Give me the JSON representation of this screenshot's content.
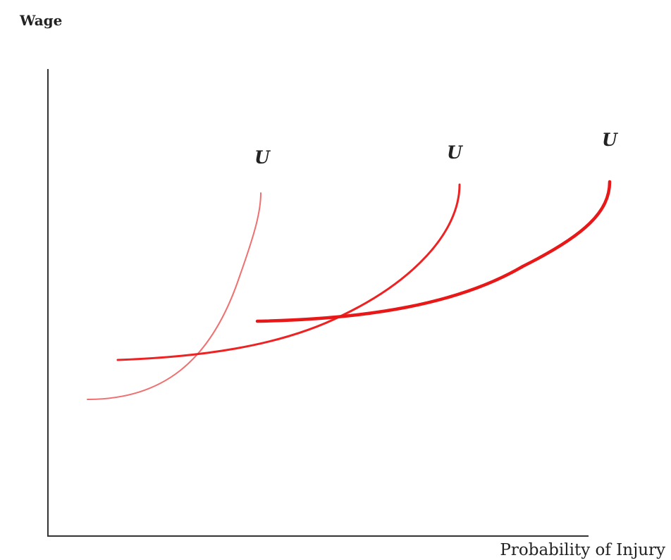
{
  "diagram": {
    "y_axis_label": "Wage",
    "x_axis_label": "Probability of Injury",
    "curves": [
      {
        "label": "U",
        "color": "#f07070",
        "stroke_width": 2
      },
      {
        "label": "U",
        "color": "#ee2222",
        "stroke_width": 3
      },
      {
        "label": "U",
        "color": "#e81818",
        "stroke_width": 4.5
      }
    ]
  }
}
